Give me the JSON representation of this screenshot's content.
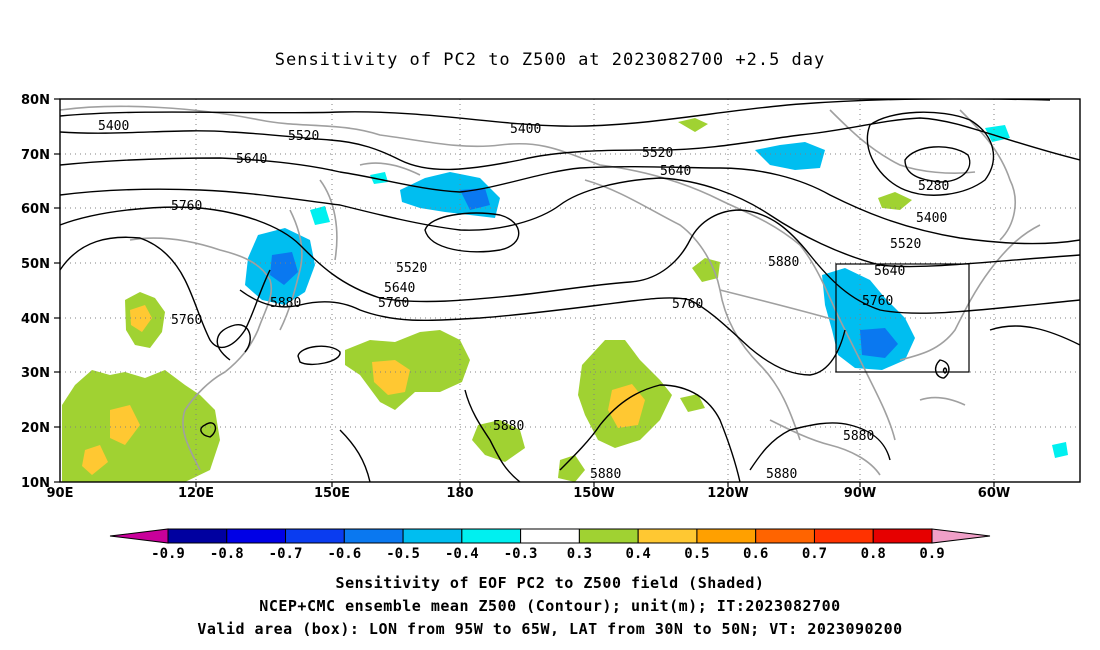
{
  "title": "Sensitivity of PC2 to Z500 at 2023082700 +2.5 day",
  "map": {
    "lat_ticks": [
      "80N",
      "70N",
      "60N",
      "50N",
      "40N",
      "30N",
      "20N",
      "10N"
    ],
    "lon_ticks": [
      "90E",
      "120E",
      "150E",
      "180",
      "150W",
      "120W",
      "90W",
      "60W"
    ],
    "grid": "dotted",
    "box": {
      "lon_from": "95W",
      "lon_to": "65W",
      "lat_from": "30N",
      "lat_to": "50N"
    },
    "contour_labels": [
      {
        "text": "5400"
      },
      {
        "text": "5520"
      },
      {
        "text": "5400"
      },
      {
        "text": "5640"
      },
      {
        "text": "5520"
      },
      {
        "text": "5640"
      },
      {
        "text": "5760"
      },
      {
        "text": "5280"
      },
      {
        "text": "5400"
      },
      {
        "text": "5520"
      },
      {
        "text": "5520"
      },
      {
        "text": "5640"
      },
      {
        "text": "5760"
      },
      {
        "text": "5880"
      },
      {
        "text": "5640"
      },
      {
        "text": "5880"
      },
      {
        "text": "5760"
      },
      {
        "text": "5760"
      },
      {
        "text": "5760"
      },
      {
        "text": "5880"
      },
      {
        "text": "5880"
      },
      {
        "text": "5880"
      },
      {
        "text": "5880"
      }
    ]
  },
  "colorbar": {
    "labels": [
      "-0.9",
      "-0.8",
      "-0.7",
      "-0.6",
      "-0.5",
      "-0.4",
      "-0.3",
      "0.3",
      "0.4",
      "0.5",
      "0.6",
      "0.7",
      "0.8",
      "0.9"
    ],
    "colors": [
      "#c8009a",
      "#0000a0",
      "#0000e6",
      "#0a3cf0",
      "#0a78f0",
      "#00bef0",
      "#00f0f0",
      "#ffffff",
      "#a0d232",
      "#ffc832",
      "#ffa000",
      "#ff6400",
      "#ff3200",
      "#e60000",
      "#f0a0c8"
    ]
  },
  "footer": {
    "line1": "Sensitivity of EOF PC2 to Z500 field (Shaded)",
    "line2": "NCEP+CMC ensemble mean Z500 (Contour); unit(m); IT:2023082700",
    "line3": "Valid area (box): LON from 95W to 65W, LAT from 30N to 50N; VT: 2023090200"
  }
}
